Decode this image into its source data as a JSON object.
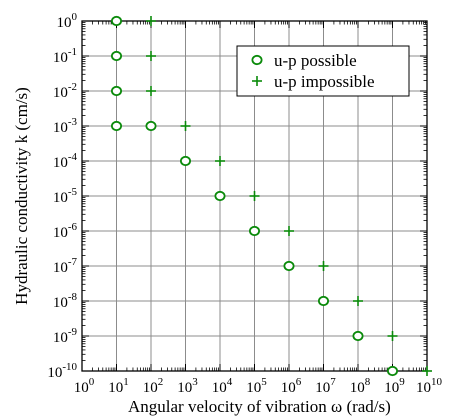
{
  "chart_data": {
    "type": "scatter",
    "xlabel": "Angular velocity of vibration  ω (rad/s)",
    "ylabel": "Hydraulic conductivity k (cm/s)",
    "xscale": "log",
    "yscale": "log",
    "xlim": [
      1,
      10000000000
    ],
    "ylim": [
      1e-10,
      1
    ],
    "x_tick_labels": [
      "10^0",
      "10^1",
      "10^2",
      "10^3",
      "10^4",
      "10^5",
      "10^6",
      "10^7",
      "10^8",
      "10^9",
      "10^10"
    ],
    "y_tick_labels": [
      "10^0",
      "10^-1",
      "10^-2",
      "10^-3",
      "10^-4",
      "10^-5",
      "10^-6",
      "10^-7",
      "10^-8",
      "10^-9",
      "10^-10"
    ],
    "grid": true,
    "legend_position": "top-right",
    "colors": {
      "marker": "#0a8a0a",
      "grid": "#8c8c8c",
      "axis": "#000000"
    },
    "series": [
      {
        "name": "u-p possible",
        "marker": "circle",
        "points": [
          {
            "x": 10,
            "y": 1
          },
          {
            "x": 10,
            "y": 0.1
          },
          {
            "x": 10,
            "y": 0.01
          },
          {
            "x": 10,
            "y": 0.001
          },
          {
            "x": 100,
            "y": 0.001
          },
          {
            "x": 1000,
            "y": 0.0001
          },
          {
            "x": 10000,
            "y": 1e-05
          },
          {
            "x": 100000,
            "y": 1e-06
          },
          {
            "x": 1000000,
            "y": 1e-07
          },
          {
            "x": 10000000,
            "y": 1e-08
          },
          {
            "x": 100000000,
            "y": 1e-09
          },
          {
            "x": 1000000000,
            "y": 1e-10
          }
        ]
      },
      {
        "name": "u-p impossible",
        "marker": "plus",
        "points": [
          {
            "x": 100,
            "y": 1
          },
          {
            "x": 100,
            "y": 0.1
          },
          {
            "x": 100,
            "y": 0.01
          },
          {
            "x": 1000,
            "y": 0.001
          },
          {
            "x": 10000,
            "y": 0.0001
          },
          {
            "x": 100000,
            "y": 1e-05
          },
          {
            "x": 1000000,
            "y": 1e-06
          },
          {
            "x": 10000000,
            "y": 1e-07
          },
          {
            "x": 100000000,
            "y": 1e-08
          },
          {
            "x": 1000000000,
            "y": 1e-09
          },
          {
            "x": 10000000000,
            "y": 1e-10
          }
        ]
      }
    ]
  }
}
